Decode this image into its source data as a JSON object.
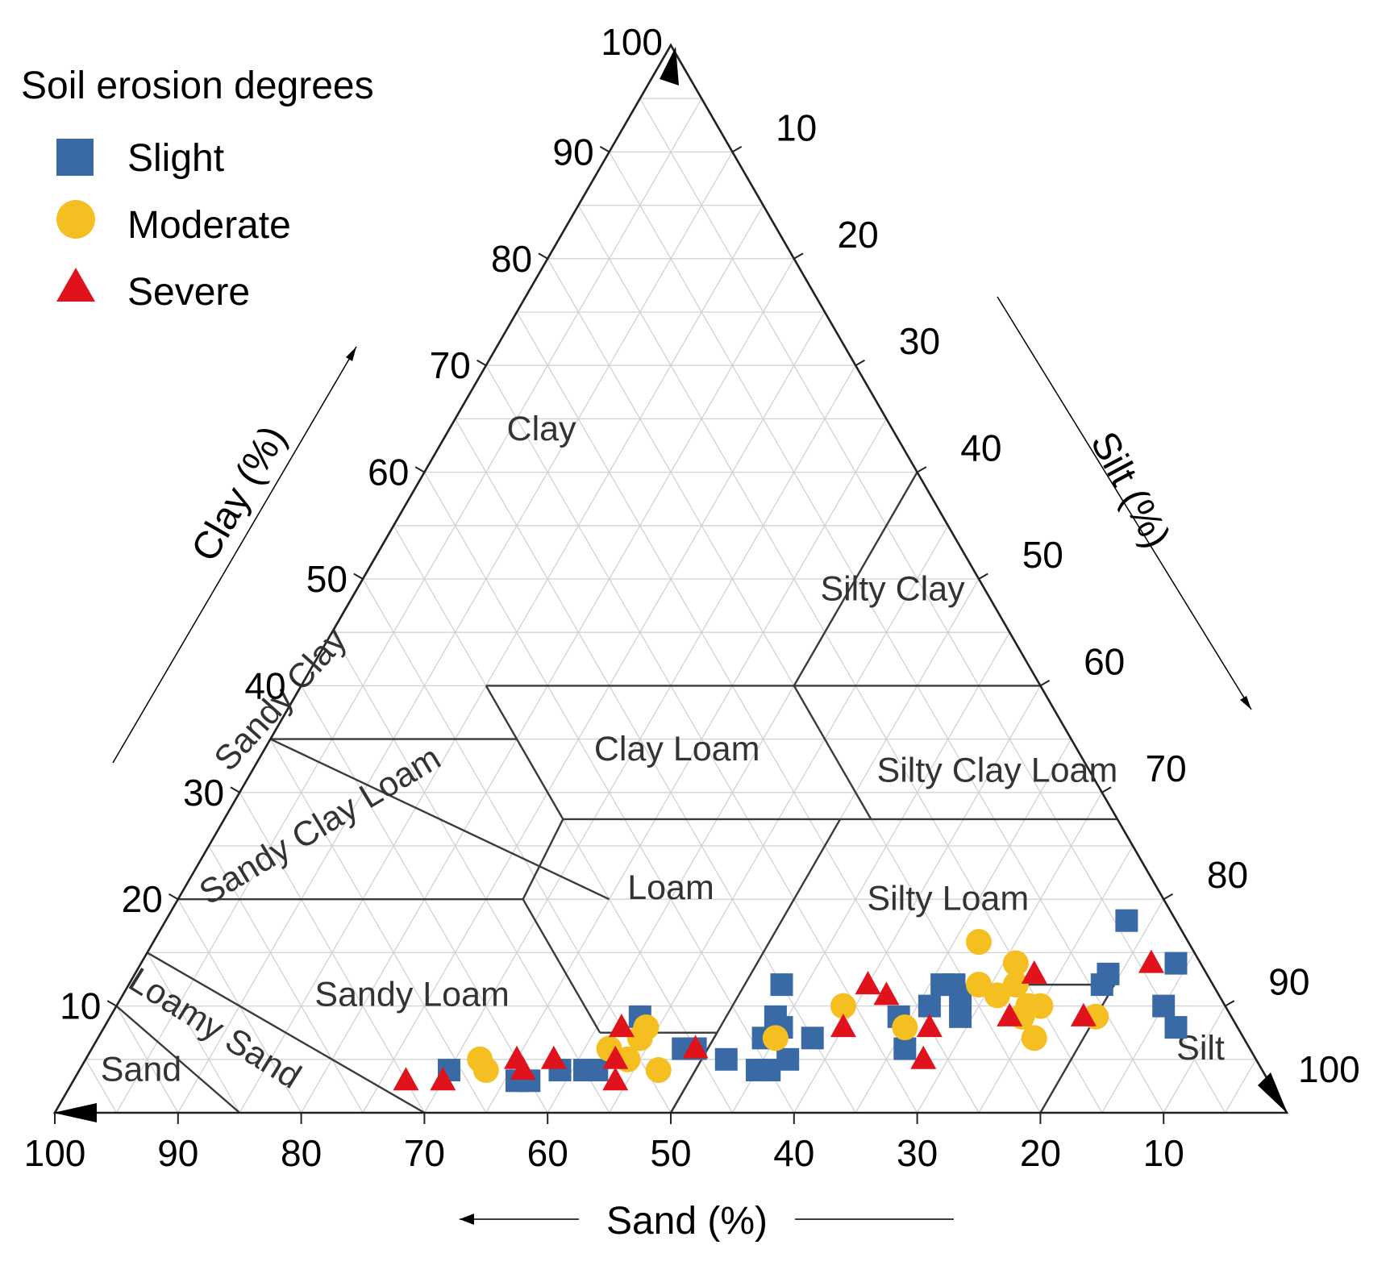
{
  "chart_data": {
    "type": "scatter",
    "subtype": "ternary",
    "axes": {
      "clay": {
        "label": "Clay (%)",
        "range": [
          0,
          100
        ],
        "ticks": [
          10,
          20,
          30,
          40,
          50,
          60,
          70,
          80,
          90,
          100
        ]
      },
      "silt": {
        "label": "Silt (%)",
        "range": [
          0,
          100
        ],
        "ticks": [
          10,
          20,
          30,
          40,
          50,
          60,
          70,
          80,
          90,
          100
        ]
      },
      "sand": {
        "label": "Sand (%)",
        "range": [
          0,
          100
        ],
        "ticks": [
          100,
          90,
          80,
          70,
          60,
          50,
          40,
          30,
          20,
          10
        ]
      }
    },
    "grid": true,
    "grid_step": 5,
    "legend": {
      "title": "Soil erosion degrees",
      "position": "top-left",
      "entries": [
        {
          "name": "Slight",
          "marker": "square",
          "color": "#3a6aa5"
        },
        {
          "name": "Moderate",
          "marker": "circle",
          "color": "#f5bf22"
        },
        {
          "name": "Severe",
          "marker": "triangle",
          "color": "#e0121b"
        }
      ]
    },
    "regions": [
      {
        "name": "Clay",
        "label_at": {
          "sand": 29,
          "clay": 63
        }
      },
      {
        "name": "Silty Clay",
        "label_at": {
          "sand": 8,
          "clay": 48
        }
      },
      {
        "name": "Sandy Clay",
        "label_at": {
          "sand": 62,
          "clay": 38
        },
        "rotate": -48
      },
      {
        "name": "Sandy Clay Loam",
        "label_at": {
          "sand": 65,
          "clay": 26
        },
        "rotate": -31
      },
      {
        "name": "Clay Loam",
        "label_at": {
          "sand": 33,
          "clay": 33
        }
      },
      {
        "name": "Silty Clay Loam",
        "label_at": {
          "sand": 8,
          "clay": 31
        }
      },
      {
        "name": "Loam",
        "label_at": {
          "sand": 40,
          "clay": 20
        }
      },
      {
        "name": "Silty Loam",
        "label_at": {
          "sand": 18,
          "clay": 19
        }
      },
      {
        "name": "Sandy Loam",
        "label_at": {
          "sand": 66,
          "clay": 10
        }
      },
      {
        "name": "Loamy Sand",
        "label_at": {
          "sand": 84,
          "clay": 7
        },
        "rotate": 32
      },
      {
        "name": "Sand",
        "label_at": {
          "sand": 91.5,
          "clay": 3
        }
      },
      {
        "name": "Silt",
        "label_at": {
          "sand": 4.5,
          "clay": 5
        }
      }
    ],
    "boundaries": [
      [
        [
          45,
          55
        ],
        [
          65,
          35
        ]
      ],
      [
        [
          65,
          35
        ],
        [
          45,
          20
        ]
      ],
      [
        [
          80,
          20
        ],
        [
          52,
          20
        ]
      ],
      [
        [
          45,
          27.5
        ],
        [
          20,
          27.5
        ]
      ],
      [
        [
          52,
          20
        ],
        [
          45,
          27.5
        ]
      ],
      [
        [
          45,
          27.5
        ],
        [
          45,
          40
        ]
      ],
      [
        [
          65,
          35
        ],
        [
          45,
          35
        ]
      ],
      [
        [
          45,
          40
        ],
        [
          0,
          40
        ]
      ],
      [
        [
          20,
          40
        ],
        [
          20,
          27.5
        ]
      ],
      [
        [
          20,
          27.5
        ],
        [
          0,
          27.5
        ]
      ],
      [
        [
          20,
          40
        ],
        [
          0,
          60
        ]
      ],
      [
        [
          52,
          7.5
        ],
        [
          42.5,
          7.5
        ]
      ],
      [
        [
          52,
          7.5
        ],
        [
          52,
          20
        ]
      ],
      [
        [
          42.5,
          7.5
        ],
        [
          50,
          0
        ]
      ],
      [
        [
          50,
          0
        ],
        [
          22.5,
          27.5
        ]
      ],
      [
        [
          85,
          15
        ],
        [
          70,
          0
        ]
      ],
      [
        [
          90,
          10
        ],
        [
          85,
          0
        ]
      ],
      [
        [
          20,
          12
        ],
        [
          8,
          12
        ]
      ],
      [
        [
          20,
          0
        ],
        [
          8,
          12
        ]
      ]
    ],
    "series": [
      {
        "name": "Slight",
        "points": [
          {
            "sand": 66,
            "clay": 4
          },
          {
            "sand": 61,
            "clay": 3
          },
          {
            "sand": 60,
            "clay": 3
          },
          {
            "sand": 57,
            "clay": 4
          },
          {
            "sand": 55,
            "clay": 4
          },
          {
            "sand": 54,
            "clay": 4
          },
          {
            "sand": 48,
            "clay": 9
          },
          {
            "sand": 46,
            "clay": 6
          },
          {
            "sand": 45,
            "clay": 6
          },
          {
            "sand": 43,
            "clay": 5
          },
          {
            "sand": 41,
            "clay": 4
          },
          {
            "sand": 40,
            "clay": 4
          },
          {
            "sand": 39,
            "clay": 7
          },
          {
            "sand": 38,
            "clay": 5
          },
          {
            "sand": 37,
            "clay": 8
          },
          {
            "sand": 37,
            "clay": 9
          },
          {
            "sand": 35,
            "clay": 12
          },
          {
            "sand": 35,
            "clay": 7
          },
          {
            "sand": 28,
            "clay": 6
          },
          {
            "sand": 27,
            "clay": 9
          },
          {
            "sand": 24,
            "clay": 10
          },
          {
            "sand": 22,
            "clay": 12
          },
          {
            "sand": 22,
            "clay": 9
          },
          {
            "sand": 21,
            "clay": 12
          },
          {
            "sand": 21,
            "clay": 11
          },
          {
            "sand": 9,
            "clay": 12
          },
          {
            "sand": 8,
            "clay": 13
          },
          {
            "sand": 4,
            "clay": 18
          },
          {
            "sand": 2,
            "clay": 14
          },
          {
            "sand": 5,
            "clay": 10
          },
          {
            "sand": 5,
            "clay": 8
          }
        ]
      },
      {
        "name": "Moderate",
        "points": [
          {
            "sand": 63,
            "clay": 5
          },
          {
            "sand": 63,
            "clay": 4
          },
          {
            "sand": 52,
            "clay": 6
          },
          {
            "sand": 51,
            "clay": 5
          },
          {
            "sand": 49,
            "clay": 7
          },
          {
            "sand": 49,
            "clay": 4
          },
          {
            "sand": 48,
            "clay": 8
          },
          {
            "sand": 38,
            "clay": 7
          },
          {
            "sand": 31,
            "clay": 10
          },
          {
            "sand": 27,
            "clay": 8
          },
          {
            "sand": 17,
            "clay": 7
          },
          {
            "sand": 19,
            "clay": 12
          },
          {
            "sand": 18,
            "clay": 11
          },
          {
            "sand": 17,
            "clay": 16
          },
          {
            "sand": 15,
            "clay": 14
          },
          {
            "sand": 16,
            "clay": 12
          },
          {
            "sand": 16,
            "clay": 10
          },
          {
            "sand": 17,
            "clay": 9
          },
          {
            "sand": 15,
            "clay": 10
          },
          {
            "sand": 11,
            "clay": 9
          }
        ]
      },
      {
        "name": "Severe",
        "points": [
          {
            "sand": 70,
            "clay": 3
          },
          {
            "sand": 67,
            "clay": 3
          },
          {
            "sand": 60,
            "clay": 4
          },
          {
            "sand": 60,
            "clay": 5
          },
          {
            "sand": 57,
            "clay": 5
          },
          {
            "sand": 53,
            "clay": 3
          },
          {
            "sand": 52,
            "clay": 5
          },
          {
            "sand": 50,
            "clay": 8
          },
          {
            "sand": 45,
            "clay": 6
          },
          {
            "sand": 32,
            "clay": 8
          },
          {
            "sand": 28,
            "clay": 12
          },
          {
            "sand": 27,
            "clay": 11
          },
          {
            "sand": 25,
            "clay": 8
          },
          {
            "sand": 27,
            "clay": 5
          },
          {
            "sand": 18,
            "clay": 9
          },
          {
            "sand": 14,
            "clay": 13
          },
          {
            "sand": 12,
            "clay": 9
          },
          {
            "sand": 4,
            "clay": 14
          }
        ]
      }
    ]
  }
}
